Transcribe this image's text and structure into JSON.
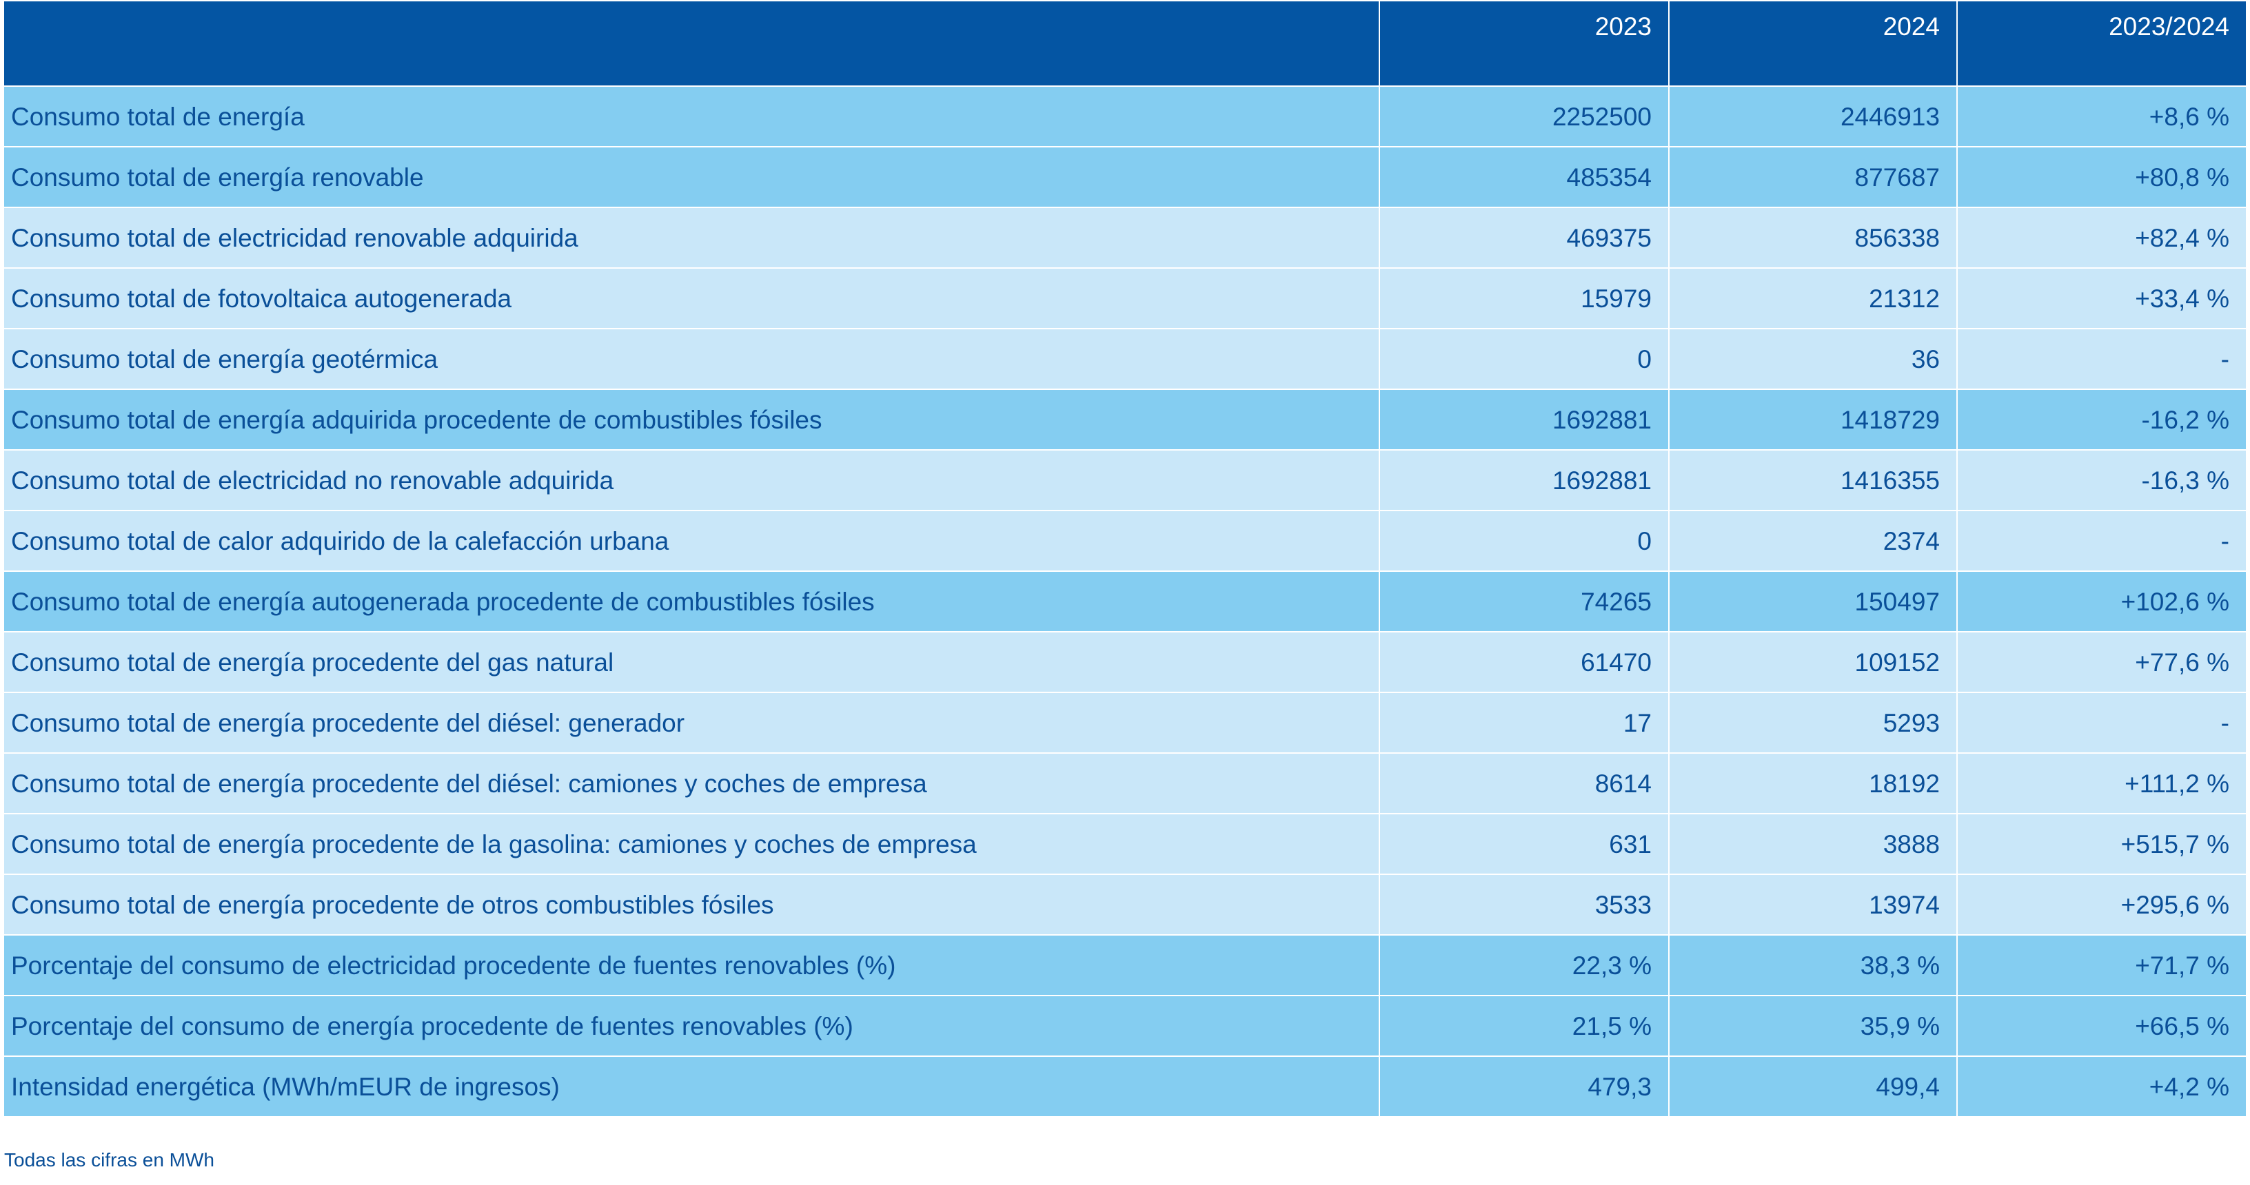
{
  "table": {
    "headers": [
      "",
      "2023",
      "2024",
      "2023/2024"
    ],
    "rows": [
      {
        "label": "Consumo total de energía",
        "y2023": "2252500",
        "y2024": "2446913",
        "change": "+8,6 %",
        "style": "dark"
      },
      {
        "label": "Consumo total de energía renovable",
        "y2023": "485354",
        "y2024": "877687",
        "change": "+80,8 %",
        "style": "dark"
      },
      {
        "label": "Consumo total de electricidad renovable adquirida",
        "y2023": "469375",
        "y2024": "856338",
        "change": "+82,4 %",
        "style": "light"
      },
      {
        "label": "Consumo total de fotovoltaica autogenerada",
        "y2023": "15979",
        "y2024": "21312",
        "change": "+33,4 %",
        "style": "light"
      },
      {
        "label": "Consumo total de energía geotérmica",
        "y2023": "0",
        "y2024": "36",
        "change": "-",
        "style": "light"
      },
      {
        "label": "Consumo total de energía adquirida procedente de combustibles fósiles",
        "y2023": "1692881",
        "y2024": "1418729",
        "change": "-16,2 %",
        "style": "dark"
      },
      {
        "label": "Consumo total de electricidad no renovable adquirida",
        "y2023": "1692881",
        "y2024": "1416355",
        "change": "-16,3 %",
        "style": "light"
      },
      {
        "label": "Consumo total de calor adquirido de la calefacción urbana",
        "y2023": "0",
        "y2024": "2374",
        "change": "-",
        "style": "light"
      },
      {
        "label": "Consumo total de energía autogenerada procedente de combustibles fósiles",
        "y2023": "74265",
        "y2024": "150497",
        "change": "+102,6 %",
        "style": "dark"
      },
      {
        "label": "Consumo total de energía procedente del gas natural",
        "y2023": "61470",
        "y2024": "109152",
        "change": "+77,6 %",
        "style": "light"
      },
      {
        "label": "Consumo total de energía procedente del diésel: generador",
        "y2023": "17",
        "y2024": "5293",
        "change": "-",
        "style": "light"
      },
      {
        "label": "Consumo total de energía procedente del diésel: camiones y coches de empresa",
        "y2023": "8614",
        "y2024": "18192",
        "change": "+111,2 %",
        "style": "light"
      },
      {
        "label": "Consumo total de energía procedente de la gasolina: camiones y coches de empresa",
        "y2023": "631",
        "y2024": "3888",
        "change": "+515,7 %",
        "style": "light"
      },
      {
        "label": "Consumo total de energía procedente de otros combustibles fósiles",
        "y2023": "3533",
        "y2024": "13974",
        "change": "+295,6 %",
        "style": "light"
      },
      {
        "label": "Porcentaje del consumo de electricidad procedente de fuentes renovables (%)",
        "y2023": "22,3 %",
        "y2024": "38,3 %",
        "change": "+71,7 %",
        "style": "dark"
      },
      {
        "label": "Porcentaje del consumo de energía procedente de fuentes renovables (%)",
        "y2023": "21,5 %",
        "y2024": "35,9 %",
        "change": "+66,5 %",
        "style": "dark"
      },
      {
        "label": "Intensidad energética (MWh/mEUR de ingresos)",
        "y2023": "479,3",
        "y2024": "499,4",
        "change": "+4,2 %",
        "style": "dark"
      }
    ]
  },
  "footnote": "Todas las cifras en MWh",
  "colors": {
    "header_bg": "#0455a3",
    "row_dark": "#84cdf1",
    "row_light": "#c9e7f9",
    "text": "#0a4f98"
  }
}
